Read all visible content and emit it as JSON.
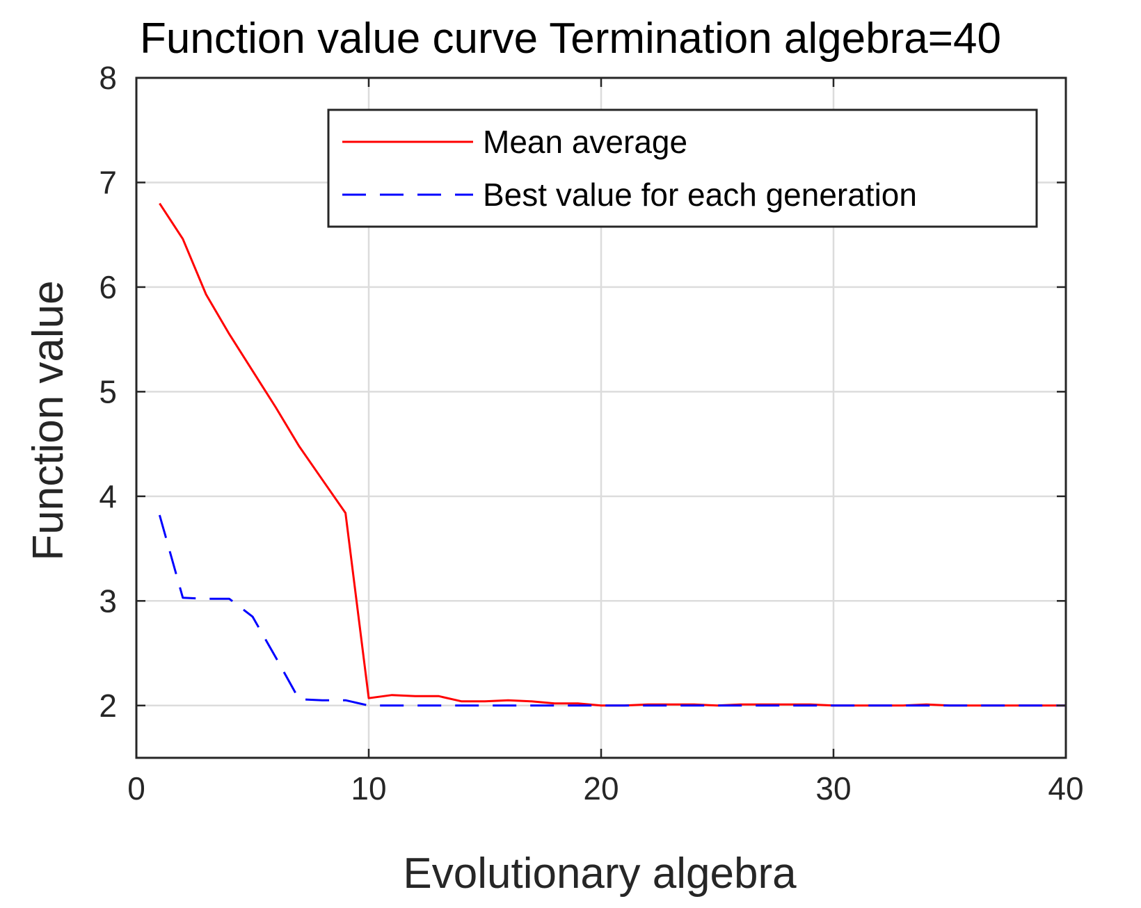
{
  "chart_data": {
    "type": "line",
    "title": "Function value curve  Termination algebra",
    "title_suffix": "=40",
    "xlabel": "Evolutionary algebra",
    "ylabel": "Function value",
    "xlim": [
      0,
      40
    ],
    "ylim": [
      1.5,
      8
    ],
    "xticks": [
      0,
      10,
      20,
      30,
      40
    ],
    "yticks": [
      2,
      3,
      4,
      5,
      6,
      7,
      8
    ],
    "grid": true,
    "legend_position": "top-right",
    "x": [
      1,
      2,
      3,
      4,
      5,
      6,
      7,
      8,
      9,
      10,
      11,
      12,
      13,
      14,
      15,
      16,
      17,
      18,
      19,
      20,
      21,
      22,
      23,
      24,
      25,
      26,
      27,
      28,
      29,
      30,
      31,
      32,
      33,
      34,
      35,
      36,
      37,
      38,
      39,
      40
    ],
    "series": [
      {
        "name": "Mean average",
        "color": "#ff0000",
        "style": "solid",
        "values": [
          6.8,
          6.46,
          5.93,
          5.55,
          5.2,
          4.85,
          4.48,
          4.16,
          3.84,
          2.07,
          2.1,
          2.09,
          2.09,
          2.04,
          2.04,
          2.05,
          2.04,
          2.02,
          2.02,
          2.0,
          2.0,
          2.01,
          2.01,
          2.01,
          2.0,
          2.01,
          2.01,
          2.01,
          2.01,
          2.0,
          2.0,
          2.0,
          2.0,
          2.01,
          2.0,
          2.0,
          2.0,
          2.0,
          2.0,
          2.0
        ]
      },
      {
        "name": "Best value for each generation",
        "color": "#0000ff",
        "style": "dashed",
        "values": [
          3.82,
          3.03,
          3.02,
          3.02,
          2.85,
          2.46,
          2.06,
          2.05,
          2.05,
          2.0,
          2.0,
          2.0,
          2.0,
          2.0,
          2.0,
          2.0,
          2.0,
          2.0,
          2.0,
          2.0,
          2.0,
          2.0,
          2.0,
          2.0,
          2.0,
          2.0,
          2.0,
          2.0,
          2.0,
          2.0,
          2.0,
          2.0,
          2.0,
          2.0,
          2.0,
          2.0,
          2.0,
          2.0,
          2.0,
          2.0
        ]
      }
    ]
  }
}
